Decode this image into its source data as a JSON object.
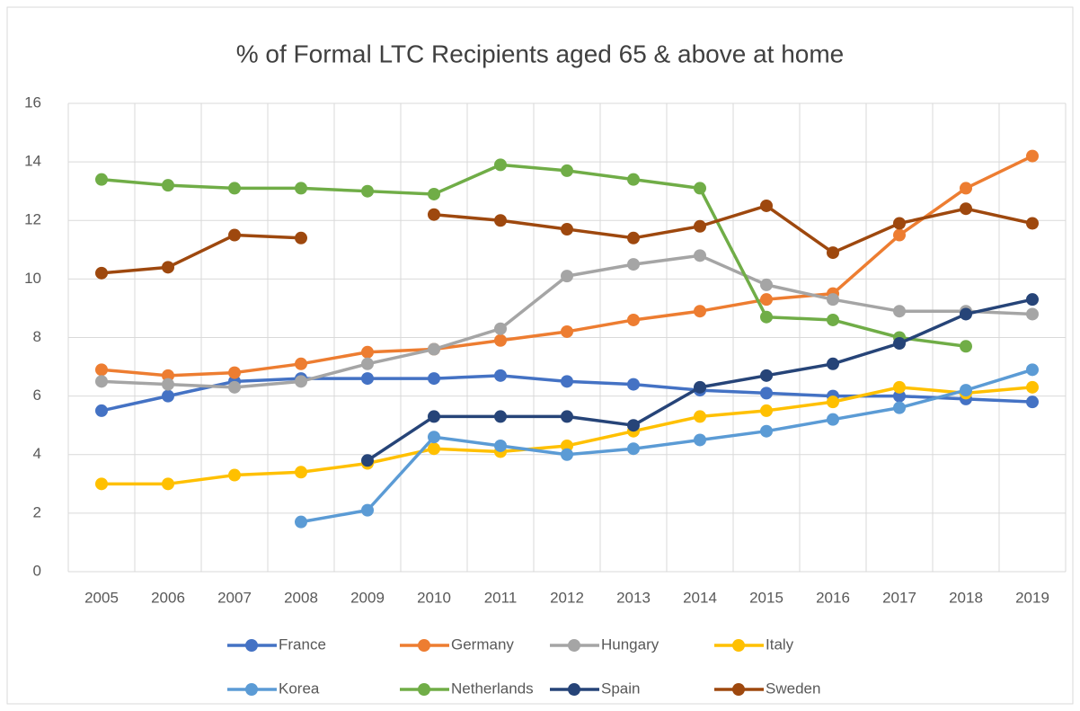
{
  "chart_data": {
    "type": "line",
    "title": "% of Formal LTC Recipients aged 65 & above at home",
    "categories": [
      "2005",
      "2006",
      "2007",
      "2008",
      "2009",
      "2010",
      "2011",
      "2012",
      "2013",
      "2014",
      "2015",
      "2016",
      "2017",
      "2018",
      "2019"
    ],
    "ylim": [
      0,
      16
    ],
    "yticks": [
      0,
      2,
      4,
      6,
      8,
      10,
      12,
      14,
      16
    ],
    "grid": true,
    "legend": "bottom",
    "series": [
      {
        "name": "France",
        "color": "#4472c4",
        "values": [
          5.5,
          6.0,
          6.5,
          6.6,
          6.6,
          6.6,
          6.7,
          6.5,
          6.4,
          6.2,
          6.1,
          6.0,
          6.0,
          5.9,
          5.8
        ]
      },
      {
        "name": "Germany",
        "color": "#ed7d31",
        "values": [
          6.9,
          6.7,
          6.8,
          7.1,
          7.5,
          7.6,
          7.9,
          8.2,
          8.6,
          8.9,
          9.3,
          9.5,
          11.5,
          13.1,
          14.2
        ]
      },
      {
        "name": "Hungary",
        "color": "#a5a5a5",
        "values": [
          6.5,
          6.4,
          6.3,
          6.5,
          7.1,
          7.6,
          8.3,
          10.1,
          10.5,
          10.8,
          9.8,
          9.3,
          8.9,
          8.9,
          8.8
        ]
      },
      {
        "name": "Italy",
        "color": "#ffc000",
        "values": [
          3.0,
          3.0,
          3.3,
          3.4,
          3.7,
          4.2,
          4.1,
          4.3,
          4.8,
          5.3,
          5.5,
          5.8,
          6.3,
          6.1,
          6.3
        ]
      },
      {
        "name": "Korea",
        "color": "#5b9bd5",
        "values": [
          null,
          null,
          null,
          1.7,
          2.1,
          4.6,
          4.3,
          4.0,
          4.2,
          4.5,
          4.8,
          5.2,
          5.6,
          6.2,
          6.9
        ]
      },
      {
        "name": "Netherlands",
        "color": "#70ad47",
        "values": [
          13.4,
          13.2,
          13.1,
          13.1,
          13.0,
          12.9,
          13.9,
          13.7,
          13.4,
          13.1,
          8.7,
          8.6,
          8.0,
          7.7,
          null
        ]
      },
      {
        "name": "Spain",
        "color": "#264478",
        "values": [
          null,
          null,
          null,
          null,
          3.8,
          5.3,
          5.3,
          5.3,
          5.0,
          6.3,
          6.7,
          7.1,
          7.8,
          8.8,
          9.3
        ]
      },
      {
        "name": "Sweden",
        "color": "#9e480e",
        "values": [
          10.2,
          10.4,
          11.5,
          11.4,
          null,
          12.2,
          12.0,
          11.7,
          11.4,
          11.8,
          12.5,
          10.9,
          11.9,
          12.4,
          11.9
        ]
      }
    ]
  }
}
